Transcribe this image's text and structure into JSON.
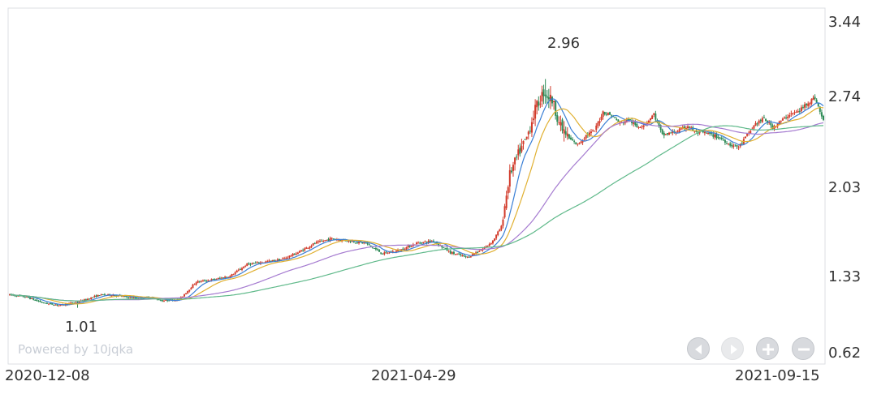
{
  "chart_data": {
    "type": "candlestick",
    "y_axis": {
      "ticks": [
        "3.44",
        "2.74",
        "2.03",
        "1.33",
        "0.62"
      ],
      "ylim": [
        0.62,
        3.44
      ]
    },
    "x_axis": {
      "ticks": [
        "2020-12-08",
        "2021-04-29",
        "2021-09-15"
      ]
    },
    "annotations": {
      "max_label": "2.96",
      "min_label": "1.01"
    },
    "watermark": "Powered by 10jqka",
    "up_color": "#d23a2a",
    "down_color": "#2e8b57",
    "ma_colors": [
      "#3a7fd5",
      "#e0b030",
      "#a57bd0",
      "#5fb98a"
    ],
    "price_path": [
      [
        0,
        1.12
      ],
      [
        10,
        1.1
      ],
      [
        20,
        1.05
      ],
      [
        30,
        1.03
      ],
      [
        40,
        1.06
      ],
      [
        45,
        1.08
      ],
      [
        53,
        1.12
      ],
      [
        60,
        1.12
      ],
      [
        70,
        1.1
      ],
      [
        75,
        1.09
      ],
      [
        83,
        1.1
      ],
      [
        90,
        1.07
      ],
      [
        100,
        1.08
      ],
      [
        110,
        1.23
      ],
      [
        120,
        1.25
      ],
      [
        130,
        1.28
      ],
      [
        140,
        1.38
      ],
      [
        150,
        1.4
      ],
      [
        160,
        1.42
      ],
      [
        170,
        1.48
      ],
      [
        180,
        1.56
      ],
      [
        190,
        1.6
      ],
      [
        200,
        1.58
      ],
      [
        210,
        1.56
      ],
      [
        220,
        1.47
      ],
      [
        230,
        1.5
      ],
      [
        240,
        1.56
      ],
      [
        250,
        1.58
      ],
      [
        260,
        1.48
      ],
      [
        270,
        1.44
      ],
      [
        280,
        1.52
      ],
      [
        285,
        1.58
      ],
      [
        290,
        1.7
      ],
      [
        295,
        2.15
      ],
      [
        300,
        2.32
      ],
      [
        305,
        2.46
      ],
      [
        310,
        2.7
      ],
      [
        315,
        2.85
      ],
      [
        320,
        2.78
      ],
      [
        325,
        2.55
      ],
      [
        330,
        2.45
      ],
      [
        335,
        2.4
      ],
      [
        340,
        2.48
      ],
      [
        345,
        2.52
      ],
      [
        350,
        2.68
      ],
      [
        355,
        2.65
      ],
      [
        360,
        2.58
      ],
      [
        365,
        2.62
      ],
      [
        370,
        2.55
      ],
      [
        375,
        2.58
      ],
      [
        380,
        2.66
      ],
      [
        385,
        2.48
      ],
      [
        390,
        2.5
      ],
      [
        395,
        2.52
      ],
      [
        400,
        2.56
      ],
      [
        405,
        2.5
      ],
      [
        410,
        2.5
      ],
      [
        415,
        2.48
      ],
      [
        420,
        2.45
      ],
      [
        425,
        2.4
      ],
      [
        430,
        2.38
      ],
      [
        435,
        2.48
      ],
      [
        440,
        2.58
      ],
      [
        445,
        2.62
      ],
      [
        450,
        2.55
      ],
      [
        455,
        2.6
      ],
      [
        460,
        2.66
      ],
      [
        465,
        2.68
      ],
      [
        470,
        2.75
      ],
      [
        475,
        2.8
      ],
      [
        480,
        2.6
      ]
    ],
    "spikes": {
      "high": [
        316,
        2.96
      ],
      "low": [
        40,
        1.01
      ]
    }
  }
}
